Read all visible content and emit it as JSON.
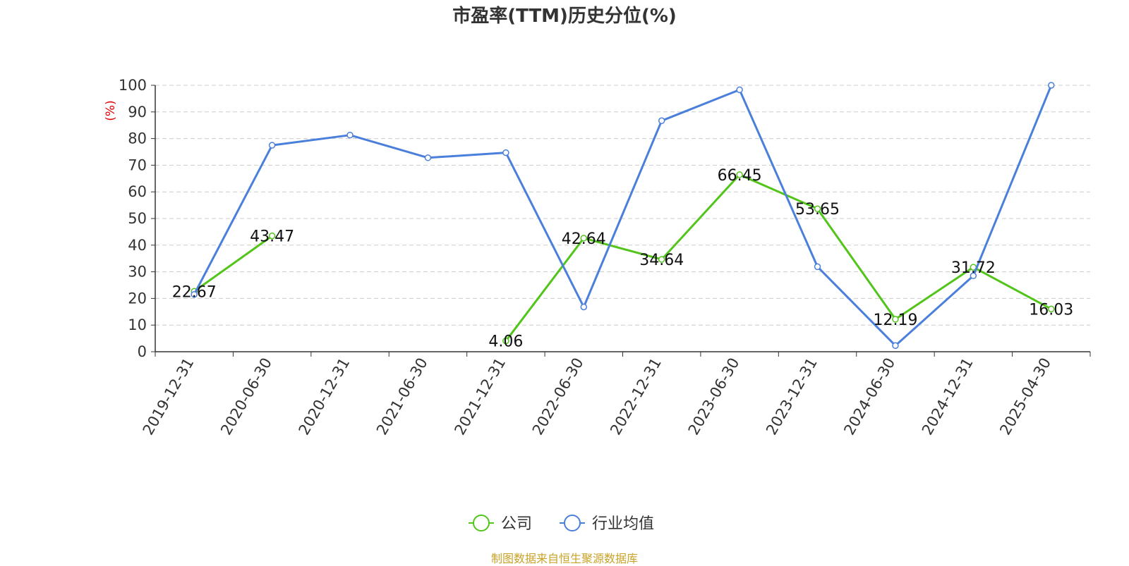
{
  "chart_data": {
    "type": "line",
    "title": "市盈率(TTM)历史分位(%)",
    "ylabel": "(%)",
    "xlabel": "",
    "categories": [
      "2019-12-31",
      "2020-06-30",
      "2020-12-31",
      "2021-06-30",
      "2021-12-31",
      "2022-06-30",
      "2022-12-31",
      "2023-06-30",
      "2023-12-31",
      "2024-06-30",
      "2024-12-31",
      "2025-04-30"
    ],
    "ylim": [
      0,
      100
    ],
    "yticks": [
      0,
      10,
      20,
      30,
      40,
      50,
      60,
      70,
      80,
      90,
      100
    ],
    "grid": true,
    "legend_position": "bottom",
    "series": [
      {
        "name": "公司",
        "color": "#52c41a",
        "show_labels": true,
        "values": [
          22.67,
          43.47,
          null,
          null,
          4.06,
          42.64,
          34.64,
          66.45,
          53.65,
          12.19,
          31.72,
          16.03
        ],
        "labels": [
          "22.67",
          "43.47",
          "",
          "",
          "4.06",
          "42.64",
          "34.64",
          "66.45",
          "53.65",
          "12.19",
          "31.72",
          "16.03"
        ]
      },
      {
        "name": "行业均值",
        "color": "#4a7fdc",
        "show_labels": false,
        "values": [
          21.5,
          77.5,
          81.3,
          72.8,
          74.7,
          16.8,
          86.7,
          98.3,
          31.9,
          2.3,
          28.5,
          100
        ]
      }
    ]
  },
  "source": "制图数据来自恒生聚源数据库"
}
